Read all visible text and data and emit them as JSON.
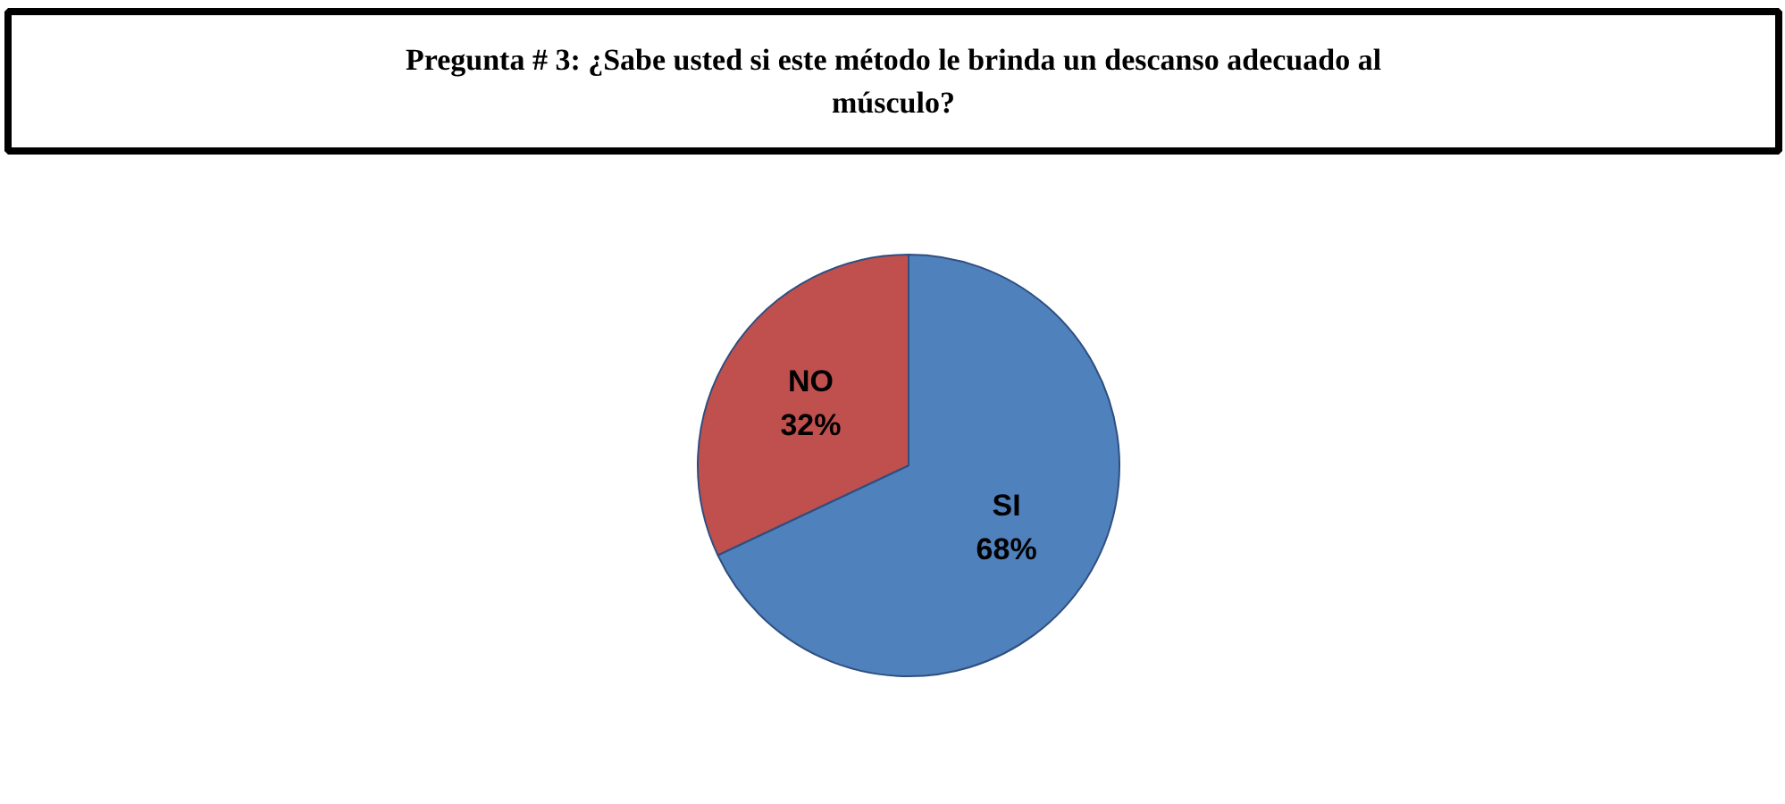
{
  "chart_data": {
    "type": "pie",
    "title": "Pregunta # 3: ¿Sabe usted si este método le brinda un descanso adecuado al músculo?",
    "categories": [
      "SI",
      "NO"
    ],
    "values": [
      68,
      32
    ],
    "colors": [
      "#4f81bd",
      "#c0504d"
    ],
    "value_labels": [
      "68%",
      "32%"
    ]
  }
}
